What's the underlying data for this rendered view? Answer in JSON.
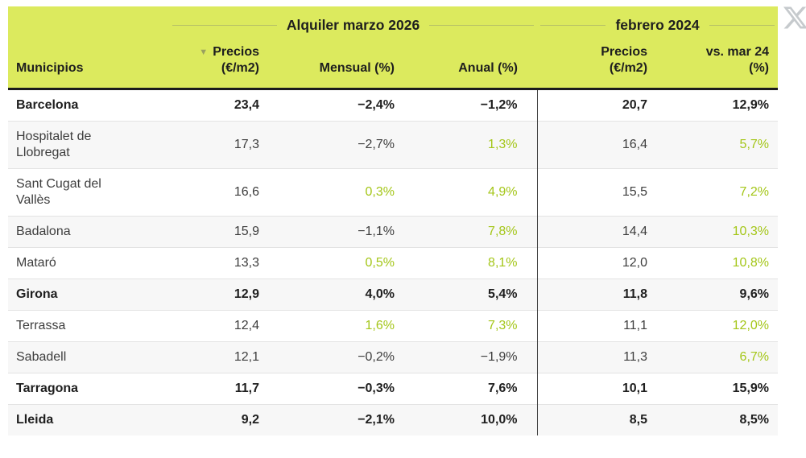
{
  "colors": {
    "header_bg": "#dcea5e",
    "accent_green": "#a4c618",
    "dark_text": "#3d3d3d",
    "header_black_bar": "#1c1c1c",
    "row_alt_bg": "#f7f7f7",
    "divider": "#404040",
    "x_icon": "#c6cacd"
  },
  "icons": {
    "sort_desc": "▼",
    "share": "x-logo"
  },
  "chart_data": {
    "type": "table",
    "groups": [
      {
        "label": "Alquiler marzo 2026"
      },
      {
        "label": "febrero 2024"
      }
    ],
    "columns": [
      {
        "label": "Municipios"
      },
      {
        "label": "Precios",
        "sub": "(€/m2)",
        "sorted_desc": true
      },
      {
        "label": "Mensual (%)"
      },
      {
        "label": "Anual (%)"
      },
      {
        "label": "Precios",
        "sub": "(€/m2)"
      },
      {
        "label": "vs. mar 24",
        "sub": "(%)"
      }
    ],
    "rows": [
      {
        "name": "Barcelona",
        "bold": true,
        "cells": [
          {
            "v": "23,4",
            "green": false
          },
          {
            "v": "−2,4%",
            "green": false
          },
          {
            "v": "−1,2%",
            "green": false
          },
          {
            "v": "20,7",
            "green": false
          },
          {
            "v": "12,9%",
            "green": true
          }
        ]
      },
      {
        "name": "Hospitalet de Llobregat",
        "bold": false,
        "cells": [
          {
            "v": "17,3",
            "green": false
          },
          {
            "v": "−2,7%",
            "green": false
          },
          {
            "v": "1,3%",
            "green": true
          },
          {
            "v": "16,4",
            "green": false
          },
          {
            "v": "5,7%",
            "green": true
          }
        ]
      },
      {
        "name": "Sant Cugat del Vallès",
        "bold": false,
        "cells": [
          {
            "v": "16,6",
            "green": false
          },
          {
            "v": "0,3%",
            "green": true
          },
          {
            "v": "4,9%",
            "green": true
          },
          {
            "v": "15,5",
            "green": false
          },
          {
            "v": "7,2%",
            "green": true
          }
        ]
      },
      {
        "name": "Badalona",
        "bold": false,
        "cells": [
          {
            "v": "15,9",
            "green": false
          },
          {
            "v": "−1,1%",
            "green": false
          },
          {
            "v": "7,8%",
            "green": true
          },
          {
            "v": "14,4",
            "green": false
          },
          {
            "v": "10,3%",
            "green": true
          }
        ]
      },
      {
        "name": "Mataró",
        "bold": false,
        "cells": [
          {
            "v": "13,3",
            "green": false
          },
          {
            "v": "0,5%",
            "green": true
          },
          {
            "v": "8,1%",
            "green": true
          },
          {
            "v": "12,0",
            "green": false
          },
          {
            "v": "10,8%",
            "green": true
          }
        ]
      },
      {
        "name": "Girona",
        "bold": true,
        "cells": [
          {
            "v": "12,9",
            "green": false
          },
          {
            "v": "4,0%",
            "green": true
          },
          {
            "v": "5,4%",
            "green": true
          },
          {
            "v": "11,8",
            "green": false
          },
          {
            "v": "9,6%",
            "green": true
          }
        ]
      },
      {
        "name": "Terrassa",
        "bold": false,
        "cells": [
          {
            "v": "12,4",
            "green": false
          },
          {
            "v": "1,6%",
            "green": true
          },
          {
            "v": "7,3%",
            "green": true
          },
          {
            "v": "11,1",
            "green": false
          },
          {
            "v": "12,0%",
            "green": true
          }
        ]
      },
      {
        "name": "Sabadell",
        "bold": false,
        "cells": [
          {
            "v": "12,1",
            "green": false
          },
          {
            "v": "−0,2%",
            "green": false
          },
          {
            "v": "−1,9%",
            "green": false
          },
          {
            "v": "11,3",
            "green": false
          },
          {
            "v": "6,7%",
            "green": true
          }
        ]
      },
      {
        "name": "Tarragona",
        "bold": true,
        "cells": [
          {
            "v": "11,7",
            "green": false
          },
          {
            "v": "−0,3%",
            "green": false
          },
          {
            "v": "7,6%",
            "green": true
          },
          {
            "v": "10,1",
            "green": false
          },
          {
            "v": "15,9%",
            "green": true
          }
        ]
      },
      {
        "name": "Lleida",
        "bold": true,
        "cells": [
          {
            "v": "9,2",
            "green": false
          },
          {
            "v": "−2,1%",
            "green": false
          },
          {
            "v": "10,0%",
            "green": true
          },
          {
            "v": "8,5",
            "green": false
          },
          {
            "v": "8,5%",
            "green": true
          }
        ]
      }
    ]
  }
}
